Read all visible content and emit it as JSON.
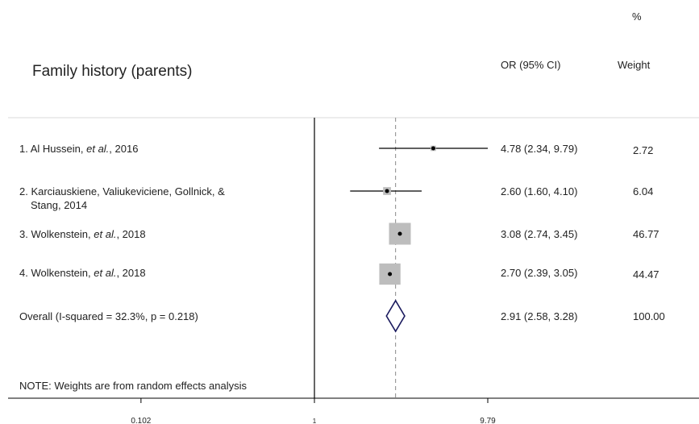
{
  "chart_data": {
    "type": "forest",
    "title": "Family history (parents)",
    "columns": {
      "estimate": "OR (95% CI)",
      "weight_unit": "%",
      "weight": "Weight"
    },
    "x_scale": "log",
    "reference_value": 1,
    "ticks": [
      "0.102",
      "1",
      "9.79"
    ],
    "studies": [
      {
        "label_lines": [
          "1. Al Hussein, ",
          "et al.",
          ", 2016"
        ],
        "label_line2": "",
        "or": 4.78,
        "lo": 2.34,
        "hi": 9.79,
        "estimate_text": "4.78 (2.34, 9.79)",
        "weight": 2.72,
        "weight_text": "2.72"
      },
      {
        "label_lines": [
          "2. Karciauskiene, Valiukeviciene, Gollnick, &",
          "",
          ""
        ],
        "label_line2": "Stang,  2014",
        "or": 2.6,
        "lo": 1.6,
        "hi": 4.1,
        "estimate_text": "2.60 (1.60, 4.10)",
        "weight": 6.04,
        "weight_text": "6.04"
      },
      {
        "label_lines": [
          "3. Wolkenstein, ",
          "et al.",
          ", 2018"
        ],
        "label_line2": "",
        "or": 3.08,
        "lo": 2.74,
        "hi": 3.45,
        "estimate_text": "3.08 (2.74, 3.45)",
        "weight": 46.77,
        "weight_text": "46.77"
      },
      {
        "label_lines": [
          "4. Wolkenstein, ",
          "et al.",
          ", 2018"
        ],
        "label_line2": "",
        "or": 2.7,
        "lo": 2.39,
        "hi": 3.05,
        "estimate_text": "2.70 (2.39, 3.05)",
        "weight": 44.47,
        "weight_text": "44.47"
      }
    ],
    "overall": {
      "label": "Overall (I-squared = 32.3%, p = 0.218)",
      "or": 2.91,
      "lo": 2.58,
      "hi": 3.28,
      "estimate_text": "2.91 (2.58, 3.28)",
      "weight_text": "100.00"
    },
    "note": "NOTE: Weights are from random effects analysis",
    "colors": {
      "ci_line": "#000000",
      "box": "#bdbdbd",
      "diamond": "#1a1a5e",
      "ref_line": "#000000",
      "overall_line": "#888888"
    }
  }
}
